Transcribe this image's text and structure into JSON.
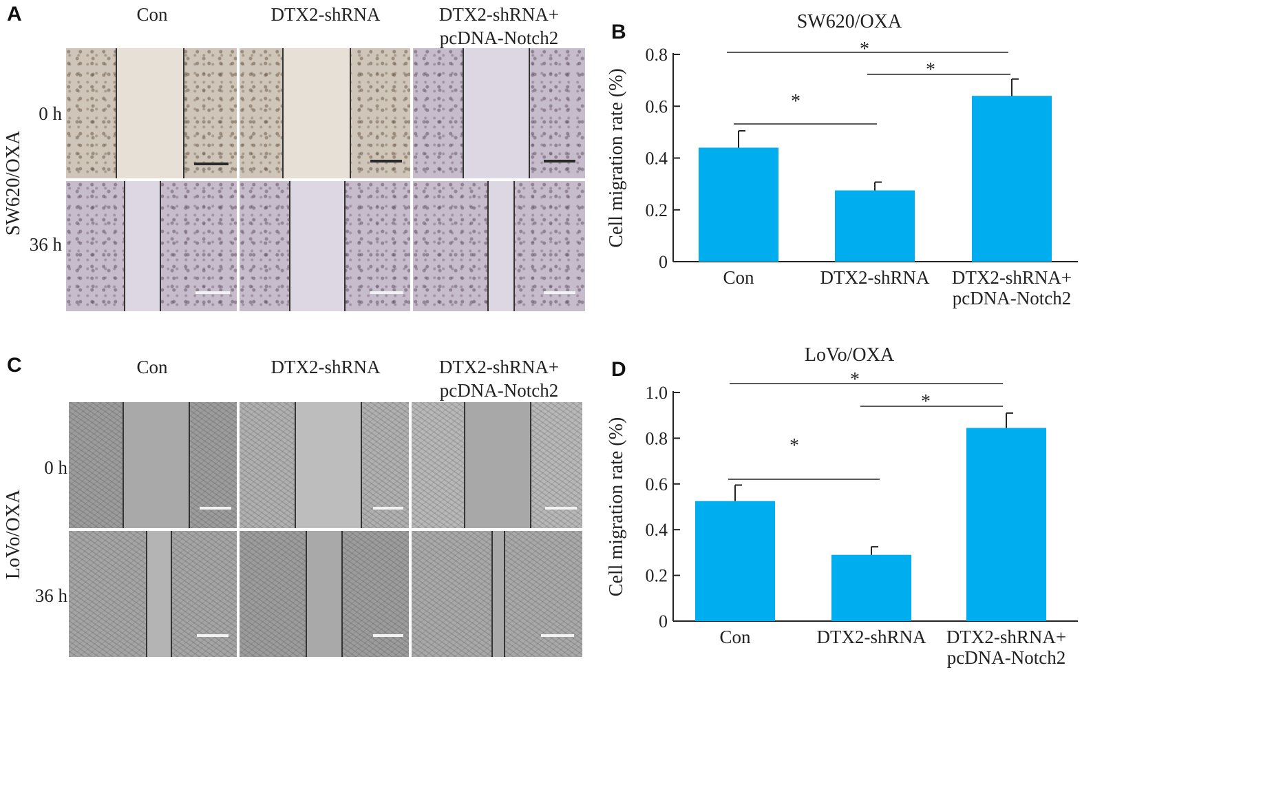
{
  "panel_a": {
    "letter": "A",
    "columns": [
      "Con",
      "DTX2-shRNA",
      "DTX2-shRNA+\npcDNA-Notch2"
    ],
    "rows": [
      "0 h",
      "36 h"
    ],
    "side_label": "SW620/OXA"
  },
  "panel_c": {
    "letter": "C",
    "columns": [
      "Con",
      "DTX2-shRNA",
      "DTX2-shRNA+\npcDNA-Notch2"
    ],
    "rows": [
      "0 h",
      "36 h"
    ],
    "side_label": "LoVo/OXA"
  },
  "panel_b": {
    "letter": "B"
  },
  "panel_d": {
    "letter": "D"
  },
  "colors": {
    "bar": "#00aeef",
    "axis": "#222222"
  },
  "chart_data": [
    {
      "type": "bar",
      "title": "SW620/OXA",
      "ylabel": "Cell migration rate (%)",
      "xlabel": "",
      "categories": [
        "Con",
        "DTX2-shRNA",
        "DTX2-shRNA+\npcDNA-Notch2"
      ],
      "values": [
        0.44,
        0.275,
        0.64
      ],
      "errors": [
        0.065,
        0.032,
        0.065
      ],
      "ylim": [
        0,
        0.8
      ],
      "yticks": [
        "0",
        "0.2",
        "0.4",
        "0.6",
        "0.8"
      ],
      "significance": [
        {
          "from": 0,
          "to": 2,
          "label": "*"
        },
        {
          "from": 1,
          "to": 2,
          "label": "*"
        },
        {
          "from": 0,
          "to": 1,
          "label": "*"
        }
      ]
    },
    {
      "type": "bar",
      "title": "LoVo/OXA",
      "ylabel": "Cell migration rate (%)",
      "xlabel": "",
      "categories": [
        "Con",
        "DTX2-shRNA",
        "DTX2-shRNA+\npcDNA-Notch2"
      ],
      "values": [
        0.525,
        0.29,
        0.845
      ],
      "errors": [
        0.07,
        0.035,
        0.065
      ],
      "ylim": [
        0,
        1.0
      ],
      "yticks": [
        "0",
        "0.2",
        "0.4",
        "0.6",
        "0.8",
        "1.0"
      ],
      "significance": [
        {
          "from": 0,
          "to": 2,
          "label": "*"
        },
        {
          "from": 1,
          "to": 2,
          "label": "*"
        },
        {
          "from": 0,
          "to": 1,
          "label": "*"
        }
      ]
    }
  ]
}
